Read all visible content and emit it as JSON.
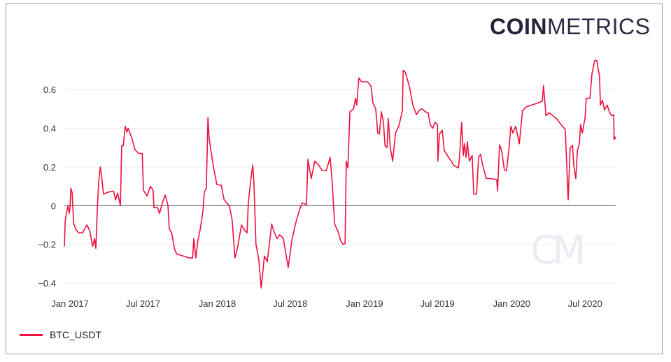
{
  "logo": {
    "bold": "COIN",
    "light": "METRICS",
    "watermark": "CM"
  },
  "chart_data": {
    "type": "line",
    "title": "",
    "xlabel": "",
    "ylabel": "",
    "xlim": [
      "2016-12-18",
      "2020-09-15"
    ],
    "ylim": [
      -0.45,
      0.77
    ],
    "grid": true,
    "legend_position": "bottom-left",
    "x_ticks": [
      {
        "date": "2017-01-01",
        "label": "Jan 2017"
      },
      {
        "date": "2017-07-01",
        "label": "Jul 2017"
      },
      {
        "date": "2018-01-01",
        "label": "Jan 2018"
      },
      {
        "date": "2018-07-01",
        "label": "Jul 2018"
      },
      {
        "date": "2019-01-01",
        "label": "Jan 2019"
      },
      {
        "date": "2019-07-01",
        "label": "Jul 2019"
      },
      {
        "date": "2020-01-01",
        "label": "Jan 2020"
      },
      {
        "date": "2020-07-01",
        "label": "Jul 2020"
      }
    ],
    "y_ticks": [
      {
        "value": -0.4,
        "label": "−0.4"
      },
      {
        "value": -0.2,
        "label": "−0.2"
      },
      {
        "value": 0,
        "label": "0"
      },
      {
        "value": 0.2,
        "label": "0.2"
      },
      {
        "value": 0.4,
        "label": "0.4"
      },
      {
        "value": 0.6,
        "label": "0.6"
      }
    ],
    "series": [
      {
        "name": "BTC_USDT",
        "color": "#f0113f",
        "points": [
          [
            "2016-12-18",
            -0.21
          ],
          [
            "2016-12-20",
            -0.08
          ],
          [
            "2016-12-23",
            -0.04
          ],
          [
            "2016-12-27",
            0.0
          ],
          [
            "2016-12-30",
            -0.04
          ],
          [
            "2017-01-01",
            -0.01
          ],
          [
            "2017-01-03",
            0.09
          ],
          [
            "2017-01-06",
            0.07
          ],
          [
            "2017-01-10",
            -0.09
          ],
          [
            "2017-01-15",
            -0.12
          ],
          [
            "2017-01-22",
            -0.14
          ],
          [
            "2017-02-01",
            -0.14
          ],
          [
            "2017-02-12",
            -0.1
          ],
          [
            "2017-02-19",
            -0.13
          ],
          [
            "2017-02-26",
            -0.21
          ],
          [
            "2017-03-03",
            -0.17
          ],
          [
            "2017-03-06",
            -0.22
          ],
          [
            "2017-03-10",
            0.0
          ],
          [
            "2017-03-13",
            0.12
          ],
          [
            "2017-03-17",
            0.2
          ],
          [
            "2017-03-20",
            0.16
          ],
          [
            "2017-03-25",
            0.06
          ],
          [
            "2017-04-06",
            0.07
          ],
          [
            "2017-04-19",
            0.075
          ],
          [
            "2017-04-24",
            0.03
          ],
          [
            "2017-04-29",
            0.065
          ],
          [
            "2017-05-06",
            0.0
          ],
          [
            "2017-05-09",
            0.31
          ],
          [
            "2017-05-13",
            0.31
          ],
          [
            "2017-05-18",
            0.41
          ],
          [
            "2017-05-22",
            0.38
          ],
          [
            "2017-05-25",
            0.4
          ],
          [
            "2017-06-03",
            0.35
          ],
          [
            "2017-06-11",
            0.29
          ],
          [
            "2017-06-20",
            0.27
          ],
          [
            "2017-06-29",
            0.27
          ],
          [
            "2017-07-02",
            0.08
          ],
          [
            "2017-07-11",
            0.05
          ],
          [
            "2017-07-19",
            0.1
          ],
          [
            "2017-07-26",
            0.08
          ],
          [
            "2017-07-28",
            -0.01
          ],
          [
            "2017-08-06",
            -0.01
          ],
          [
            "2017-08-11",
            -0.04
          ],
          [
            "2017-08-18",
            0.015
          ],
          [
            "2017-08-25",
            0.055
          ],
          [
            "2017-09-01",
            0.0
          ],
          [
            "2017-09-04",
            -0.12
          ],
          [
            "2017-09-10",
            -0.14
          ],
          [
            "2017-09-18",
            -0.23
          ],
          [
            "2017-09-23",
            -0.25
          ],
          [
            "2017-10-09",
            -0.26
          ],
          [
            "2017-10-23",
            -0.27
          ],
          [
            "2017-11-01",
            -0.27
          ],
          [
            "2017-11-04",
            -0.17
          ],
          [
            "2017-11-09",
            -0.27
          ],
          [
            "2017-11-14",
            -0.18
          ],
          [
            "2017-11-20",
            -0.12
          ],
          [
            "2017-11-27",
            -0.02
          ],
          [
            "2017-11-30",
            0.07
          ],
          [
            "2017-12-05",
            0.09
          ],
          [
            "2017-12-09",
            0.455
          ],
          [
            "2017-12-12",
            0.35
          ],
          [
            "2017-12-16",
            0.29
          ],
          [
            "2017-12-23",
            0.195
          ],
          [
            "2017-12-31",
            0.11
          ],
          [
            "2018-01-11",
            0.105
          ],
          [
            "2018-01-18",
            0.03
          ],
          [
            "2018-01-31",
            0.0
          ],
          [
            "2018-02-07",
            -0.075
          ],
          [
            "2018-02-14",
            -0.27
          ],
          [
            "2018-02-21",
            -0.21
          ],
          [
            "2018-03-02",
            -0.1
          ],
          [
            "2018-03-11",
            -0.13
          ],
          [
            "2018-03-16",
            -0.14
          ],
          [
            "2018-03-19",
            0.015
          ],
          [
            "2018-03-25",
            0.13
          ],
          [
            "2018-03-30",
            0.21
          ],
          [
            "2018-04-02",
            0.12
          ],
          [
            "2018-04-07",
            -0.2
          ],
          [
            "2018-04-14",
            -0.275
          ],
          [
            "2018-04-20",
            -0.425
          ],
          [
            "2018-04-28",
            -0.26
          ],
          [
            "2018-05-05",
            -0.29
          ],
          [
            "2018-05-16",
            -0.095
          ],
          [
            "2018-05-21",
            -0.13
          ],
          [
            "2018-05-29",
            -0.17
          ],
          [
            "2018-06-05",
            -0.15
          ],
          [
            "2018-06-14",
            -0.17
          ],
          [
            "2018-06-26",
            -0.32
          ],
          [
            "2018-07-05",
            -0.18
          ],
          [
            "2018-07-14",
            -0.095
          ],
          [
            "2018-07-24",
            -0.02
          ],
          [
            "2018-07-31",
            0.015
          ],
          [
            "2018-08-10",
            0.005
          ],
          [
            "2018-08-14",
            0.24
          ],
          [
            "2018-08-22",
            0.14
          ],
          [
            "2018-08-31",
            0.23
          ],
          [
            "2018-09-09",
            0.21
          ],
          [
            "2018-09-17",
            0.185
          ],
          [
            "2018-09-28",
            0.18
          ],
          [
            "2018-10-08",
            0.25
          ],
          [
            "2018-10-13",
            0.12
          ],
          [
            "2018-10-19",
            -0.095
          ],
          [
            "2018-10-27",
            -0.13
          ],
          [
            "2018-11-03",
            -0.18
          ],
          [
            "2018-11-09",
            -0.2
          ],
          [
            "2018-11-14",
            -0.195
          ],
          [
            "2018-11-17",
            0.23
          ],
          [
            "2018-11-21",
            0.195
          ],
          [
            "2018-11-26",
            0.485
          ],
          [
            "2018-12-05",
            0.5
          ],
          [
            "2018-12-10",
            0.555
          ],
          [
            "2018-12-13",
            0.52
          ],
          [
            "2018-12-18",
            0.66
          ],
          [
            "2018-12-25",
            0.64
          ],
          [
            "2019-01-08",
            0.64
          ],
          [
            "2019-01-17",
            0.62
          ],
          [
            "2019-01-22",
            0.53
          ],
          [
            "2019-01-29",
            0.5
          ],
          [
            "2019-02-03",
            0.375
          ],
          [
            "2019-02-07",
            0.37
          ],
          [
            "2019-02-12",
            0.485
          ],
          [
            "2019-02-17",
            0.43
          ],
          [
            "2019-02-21",
            0.31
          ],
          [
            "2019-02-26",
            0.3
          ],
          [
            "2019-03-01",
            0.45
          ],
          [
            "2019-03-06",
            0.3
          ],
          [
            "2019-03-12",
            0.23
          ],
          [
            "2019-03-19",
            0.375
          ],
          [
            "2019-03-27",
            0.41
          ],
          [
            "2019-04-05",
            0.49
          ],
          [
            "2019-04-07",
            0.7
          ],
          [
            "2019-04-12",
            0.69
          ],
          [
            "2019-04-22",
            0.62
          ],
          [
            "2019-05-01",
            0.52
          ],
          [
            "2019-05-10",
            0.47
          ],
          [
            "2019-05-18",
            0.495
          ],
          [
            "2019-05-24",
            0.5
          ],
          [
            "2019-06-01",
            0.485
          ],
          [
            "2019-06-08",
            0.48
          ],
          [
            "2019-06-13",
            0.42
          ],
          [
            "2019-06-19",
            0.4
          ],
          [
            "2019-06-25",
            0.43
          ],
          [
            "2019-07-01",
            0.42
          ],
          [
            "2019-07-02",
            0.23
          ],
          [
            "2019-07-06",
            0.37
          ],
          [
            "2019-07-13",
            0.39
          ],
          [
            "2019-07-18",
            0.285
          ],
          [
            "2019-07-27",
            0.255
          ],
          [
            "2019-08-04",
            0.23
          ],
          [
            "2019-08-10",
            0.21
          ],
          [
            "2019-08-17",
            0.2
          ],
          [
            "2019-08-22",
            0.195
          ],
          [
            "2019-08-25",
            0.26
          ],
          [
            "2019-08-30",
            0.43
          ],
          [
            "2019-09-03",
            0.26
          ],
          [
            "2019-09-06",
            0.32
          ],
          [
            "2019-09-10",
            0.25
          ],
          [
            "2019-09-13",
            0.33
          ],
          [
            "2019-09-18",
            0.23
          ],
          [
            "2019-09-25",
            0.26
          ],
          [
            "2019-09-29",
            0.06
          ],
          [
            "2019-10-06",
            0.06
          ],
          [
            "2019-10-11",
            0.25
          ],
          [
            "2019-10-16",
            0.265
          ],
          [
            "2019-10-21",
            0.21
          ],
          [
            "2019-10-30",
            0.14
          ],
          [
            "2019-11-08",
            0.14
          ],
          [
            "2019-11-25",
            0.135
          ],
          [
            "2019-11-27",
            0.075
          ],
          [
            "2019-12-02",
            0.315
          ],
          [
            "2019-12-07",
            0.285
          ],
          [
            "2019-12-14",
            0.185
          ],
          [
            "2019-12-19",
            0.18
          ],
          [
            "2019-12-25",
            0.285
          ],
          [
            "2019-12-30",
            0.41
          ],
          [
            "2020-01-04",
            0.375
          ],
          [
            "2020-01-11",
            0.41
          ],
          [
            "2020-01-20",
            0.32
          ],
          [
            "2020-01-28",
            0.49
          ],
          [
            "2020-02-06",
            0.51
          ],
          [
            "2020-02-20",
            0.52
          ],
          [
            "2020-03-05",
            0.53
          ],
          [
            "2020-03-17",
            0.54
          ],
          [
            "2020-03-20",
            0.62
          ],
          [
            "2020-03-26",
            0.465
          ],
          [
            "2020-04-03",
            0.48
          ],
          [
            "2020-04-21",
            0.45
          ],
          [
            "2020-05-08",
            0.405
          ],
          [
            "2020-05-13",
            0.395
          ],
          [
            "2020-05-20",
            0.03
          ],
          [
            "2020-05-25",
            0.3
          ],
          [
            "2020-05-31",
            0.31
          ],
          [
            "2020-06-03",
            0.21
          ],
          [
            "2020-06-08",
            0.14
          ],
          [
            "2020-06-12",
            0.285
          ],
          [
            "2020-06-17",
            0.32
          ],
          [
            "2020-06-20",
            0.42
          ],
          [
            "2020-06-24",
            0.375
          ],
          [
            "2020-07-01",
            0.455
          ],
          [
            "2020-07-04",
            0.555
          ],
          [
            "2020-07-13",
            0.555
          ],
          [
            "2020-07-18",
            0.68
          ],
          [
            "2020-07-25",
            0.75
          ],
          [
            "2020-07-30",
            0.75
          ],
          [
            "2020-08-06",
            0.665
          ],
          [
            "2020-08-08",
            0.52
          ],
          [
            "2020-08-13",
            0.545
          ],
          [
            "2020-08-18",
            0.495
          ],
          [
            "2020-08-25",
            0.52
          ],
          [
            "2020-08-30",
            0.485
          ],
          [
            "2020-09-05",
            0.465
          ],
          [
            "2020-09-10",
            0.47
          ],
          [
            "2020-09-11",
            0.34
          ],
          [
            "2020-09-13",
            0.355
          ],
          [
            "2020-09-15",
            0.345
          ]
        ]
      }
    ]
  },
  "legend": {
    "items": [
      {
        "label": "BTC_USDT",
        "color": "#f0113f"
      }
    ]
  }
}
